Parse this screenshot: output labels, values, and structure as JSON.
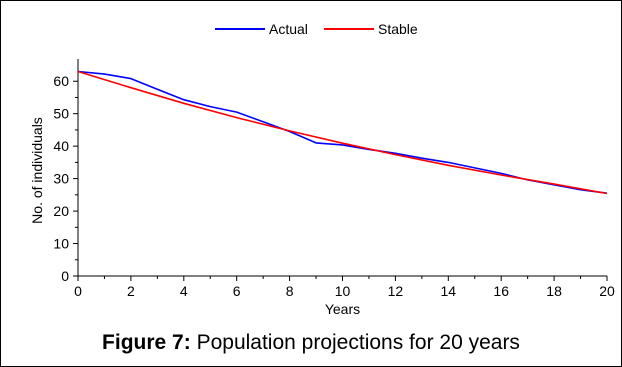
{
  "caption": {
    "label": "Figure 7:",
    "text": "Population projections for 20 years"
  },
  "chart_data": {
    "type": "line",
    "xlabel": "Years",
    "ylabel": "No. of individuals",
    "xlim": [
      0,
      20
    ],
    "ylim": [
      0,
      65
    ],
    "x_ticks": [
      0,
      2,
      4,
      6,
      8,
      10,
      12,
      14,
      16,
      18,
      20
    ],
    "y_ticks": [
      0,
      10,
      20,
      30,
      40,
      50,
      60
    ],
    "grid": false,
    "legend_position": "top-center",
    "series": [
      {
        "name": "Actual",
        "color": "#0000ff",
        "x": [
          0,
          1,
          2,
          3,
          4,
          5,
          6,
          7,
          8,
          9,
          10,
          11,
          12,
          13,
          14,
          15,
          16,
          17,
          18,
          19,
          20
        ],
        "values": [
          63,
          62.2,
          60.8,
          57.5,
          54.3,
          52.2,
          50.5,
          47.5,
          44.5,
          41,
          40.4,
          39,
          37.8,
          36.3,
          35,
          33.3,
          31.6,
          29.6,
          28.1,
          26.6,
          25.5
        ]
      },
      {
        "name": "Stable",
        "color": "#ff0000",
        "x": [
          0,
          2,
          4,
          6,
          8,
          10,
          12,
          14,
          16,
          18,
          20
        ],
        "values": [
          63,
          58,
          53.2,
          48.8,
          44.7,
          40.9,
          37.4,
          34.1,
          31.1,
          28.3,
          25.4
        ]
      }
    ]
  }
}
